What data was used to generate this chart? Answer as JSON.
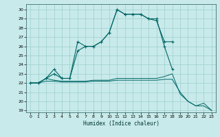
{
  "xlabel": "Humidex (Indice chaleur)",
  "bg_color": "#c8eaea",
  "grid_color": "#9ecece",
  "line_color": "#006666",
  "xlim": [
    -0.5,
    23.5
  ],
  "ylim": [
    18.8,
    30.6
  ],
  "yticks": [
    19,
    20,
    21,
    22,
    23,
    24,
    25,
    26,
    27,
    28,
    29,
    30
  ],
  "xticks": [
    0,
    1,
    2,
    3,
    4,
    5,
    6,
    7,
    8,
    9,
    10,
    11,
    12,
    13,
    14,
    15,
    16,
    17,
    18,
    19,
    20,
    21,
    22,
    23
  ],
  "line1_x": [
    0,
    1,
    2,
    3,
    4,
    5,
    6,
    7,
    8,
    9,
    10,
    11,
    12,
    13,
    14,
    15,
    16,
    17,
    18,
    19,
    20,
    21,
    22,
    23
  ],
  "line1_y": [
    22,
    22,
    22.5,
    22.3,
    22.2,
    22.2,
    22.2,
    22.2,
    22.3,
    22.3,
    22.3,
    22.5,
    22.5,
    22.5,
    22.5,
    22.5,
    22.5,
    22.7,
    23.0,
    20.8,
    20.0,
    19.5,
    19.5,
    19.0
  ],
  "line2_x": [
    0,
    1,
    2,
    3,
    4,
    5,
    6,
    7,
    8,
    9,
    10,
    11,
    12,
    13,
    14,
    15,
    16,
    17,
    18,
    19,
    20,
    21,
    22,
    23
  ],
  "line2_y": [
    22,
    22,
    22.2,
    22.2,
    22.1,
    22.1,
    22.1,
    22.1,
    22.2,
    22.2,
    22.2,
    22.3,
    22.3,
    22.3,
    22.3,
    22.3,
    22.3,
    22.4,
    22.4,
    21.0,
    20.0,
    19.5,
    19.8,
    19.0
  ],
  "line3_x": [
    0,
    1,
    2,
    3,
    4,
    5,
    6,
    7,
    8,
    9,
    10,
    11,
    12,
    13,
    14,
    15,
    16,
    17,
    18
  ],
  "line3_y": [
    22,
    22,
    22.5,
    23.5,
    22.5,
    22.5,
    26.5,
    26.0,
    26.0,
    26.5,
    27.5,
    30.0,
    29.5,
    29.5,
    29.5,
    29.0,
    29.0,
    26.0,
    23.5
  ],
  "line4_x": [
    0,
    1,
    2,
    3,
    4,
    5,
    6,
    7,
    8,
    9,
    10,
    11,
    12,
    13,
    14,
    15,
    16,
    17,
    18
  ],
  "line4_y": [
    22,
    22,
    22.5,
    23.0,
    22.5,
    22.5,
    25.5,
    26.0,
    26.0,
    26.5,
    27.5,
    30.0,
    29.5,
    29.5,
    29.5,
    29.0,
    28.8,
    26.5,
    26.5
  ]
}
